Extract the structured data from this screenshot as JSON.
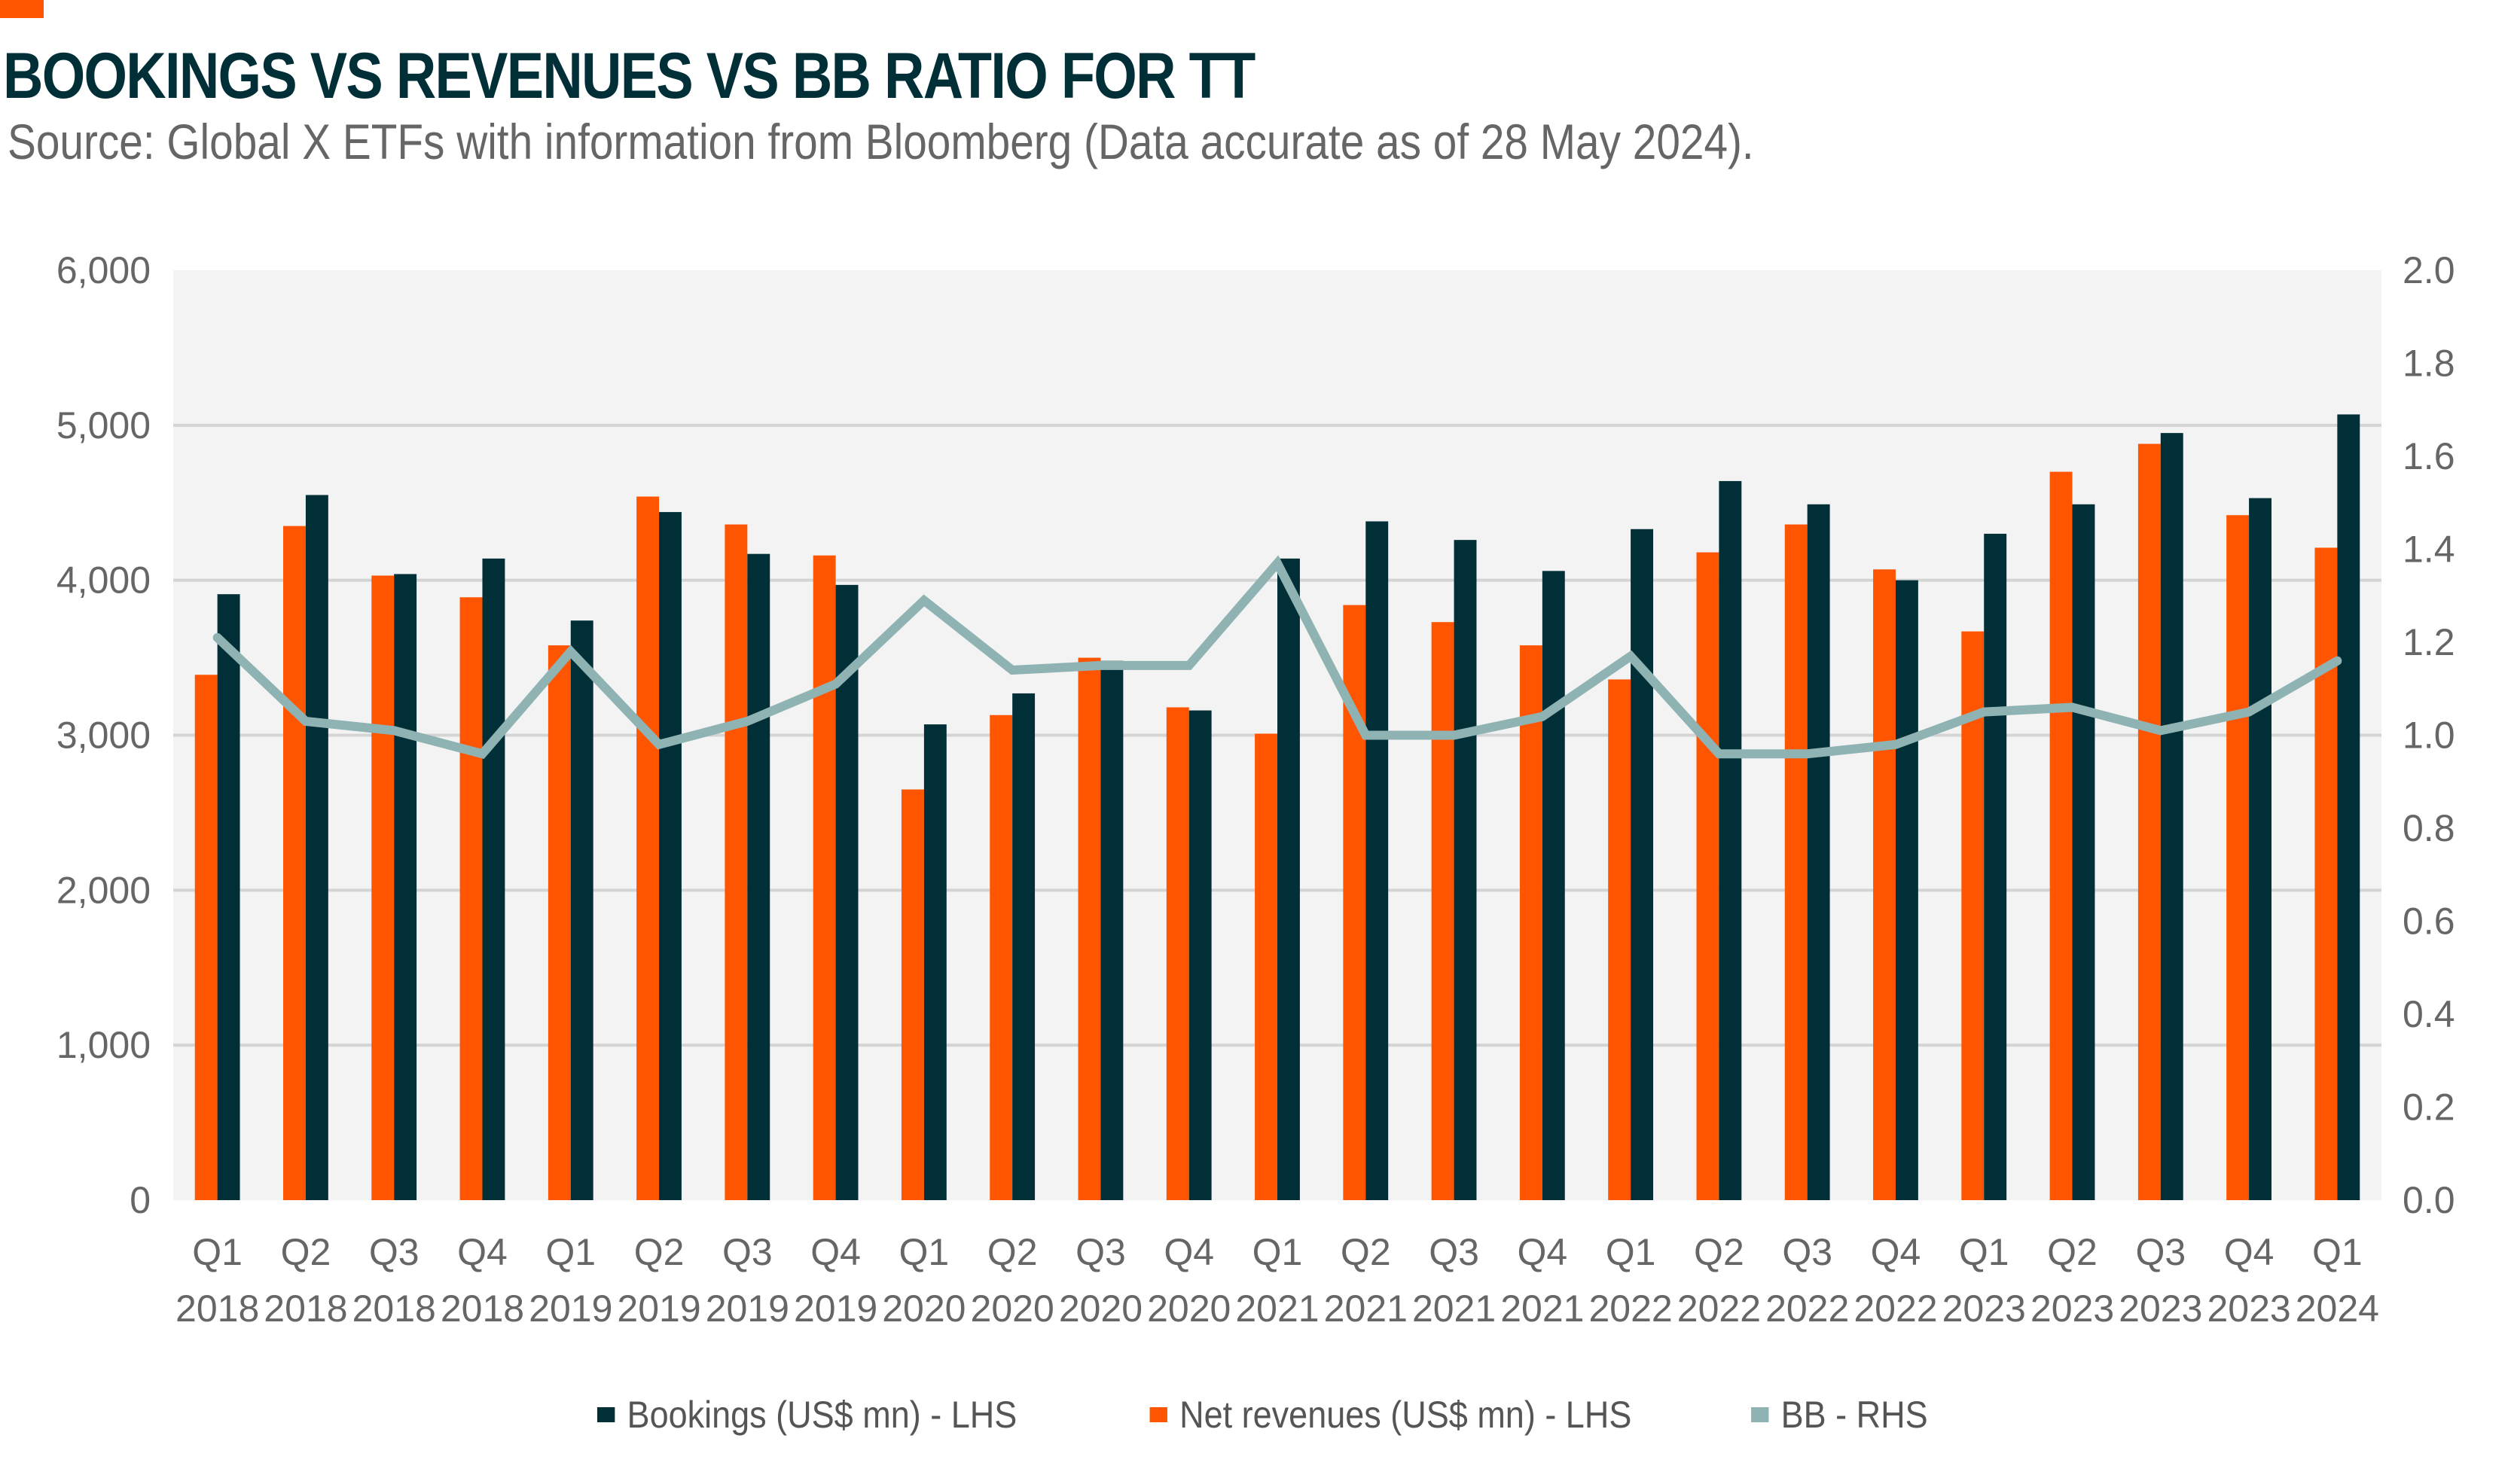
{
  "header": {
    "title": "BOOKINGS VS REVENUES VS BB RATIO FOR TT",
    "subtitle": "Source: Global X ETFs with information from Bloomberg (Data accurate as of 28 May 2024)."
  },
  "colors": {
    "bookings": "#002f38",
    "net_revenues": "#ff5500",
    "bb": "#8fb3b3",
    "plot_bg": "#f3f3f3",
    "grid": "#d4d4d4",
    "accent": "#ff5500"
  },
  "legend": [
    {
      "name": "Bookings (US$ mn) - LHS",
      "key": "bookings"
    },
    {
      "name": "Net revenues (US$ mn) - LHS",
      "key": "net_revenues"
    },
    {
      "name": "BB - RHS",
      "key": "bb"
    }
  ],
  "chart_data": {
    "type": "bar",
    "title": "BOOKINGS VS REVENUES VS BB RATIO FOR TT",
    "xlabel": "",
    "ylabel": "",
    "ylim": [
      0,
      6000
    ],
    "y2lim": [
      0.0,
      2.0
    ],
    "yticks": [
      "0",
      "1,000",
      "2,000",
      "3,000",
      "4,000",
      "5,000",
      "6,000"
    ],
    "y2ticks": [
      "0.0",
      "0.2",
      "0.4",
      "0.6",
      "0.8",
      "1.0",
      "1.2",
      "1.4",
      "1.6",
      "1.8",
      "2.0"
    ],
    "grid": true,
    "legend_position": "bottom",
    "categories": [
      [
        "Q1",
        "2018"
      ],
      [
        "Q2",
        "2018"
      ],
      [
        "Q3",
        "2018"
      ],
      [
        "Q4",
        "2018"
      ],
      [
        "Q1",
        "2019"
      ],
      [
        "Q2",
        "2019"
      ],
      [
        "Q3",
        "2019"
      ],
      [
        "Q4",
        "2019"
      ],
      [
        "Q1",
        "2020"
      ],
      [
        "Q2",
        "2020"
      ],
      [
        "Q3",
        "2020"
      ],
      [
        "Q4",
        "2020"
      ],
      [
        "Q1",
        "2021"
      ],
      [
        "Q2",
        "2021"
      ],
      [
        "Q3",
        "2021"
      ],
      [
        "Q4",
        "2021"
      ],
      [
        "Q1",
        "2022"
      ],
      [
        "Q2",
        "2022"
      ],
      [
        "Q3",
        "2022"
      ],
      [
        "Q4",
        "2022"
      ],
      [
        "Q1",
        "2023"
      ],
      [
        "Q2",
        "2023"
      ],
      [
        "Q3",
        "2023"
      ],
      [
        "Q4",
        "2023"
      ],
      [
        "Q1",
        "2024"
      ]
    ],
    "series": [
      {
        "name": "Net revenues (US$ mn) - LHS",
        "type": "bar",
        "axis": "left",
        "values": [
          3390,
          4350,
          4030,
          3890,
          3580,
          4540,
          4360,
          4160,
          2650,
          3130,
          3500,
          3180,
          3010,
          3840,
          3730,
          3580,
          3360,
          4180,
          4360,
          4070,
          3670,
          4700,
          4880,
          4420,
          4210
        ]
      },
      {
        "name": "Bookings (US$ mn) - LHS",
        "type": "bar",
        "axis": "left",
        "values": [
          3910,
          4550,
          4040,
          4140,
          3740,
          4440,
          4170,
          3970,
          3070,
          3270,
          3480,
          3160,
          4140,
          4380,
          4260,
          4060,
          4330,
          4640,
          4490,
          4000,
          4300,
          4490,
          4950,
          4530,
          5070
        ]
      },
      {
        "name": "BB - RHS",
        "type": "line",
        "axis": "right",
        "values": [
          1.21,
          1.03,
          1.01,
          0.96,
          1.18,
          0.98,
          1.03,
          1.11,
          1.29,
          1.14,
          1.15,
          1.15,
          1.37,
          1.0,
          1.0,
          1.04,
          1.17,
          0.96,
          0.96,
          0.98,
          1.05,
          1.06,
          1.01,
          1.05,
          1.16
        ]
      }
    ]
  }
}
